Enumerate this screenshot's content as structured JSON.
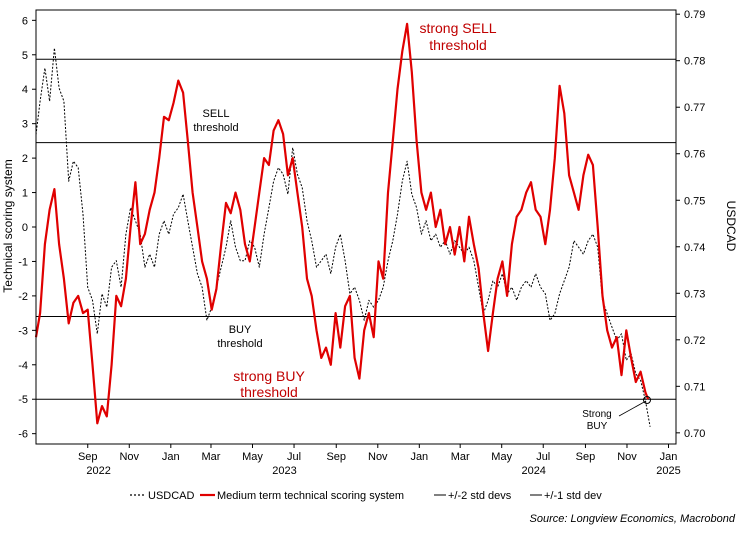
{
  "chart_data": {
    "type": "line",
    "y_left_label": "Technical scoring system",
    "y_right_label": "USDCAD",
    "y_left_range": [
      -6.3,
      6.3
    ],
    "y_right_range": [
      0.6976,
      0.7909
    ],
    "y_left_ticks": [
      "-6",
      "-5",
      "-4",
      "-3",
      "-2",
      "-1",
      "0",
      "1",
      "2",
      "3",
      "4",
      "5",
      "6"
    ],
    "y_right_ticks": [
      "0.70",
      "0.71",
      "0.72",
      "0.73",
      "0.74",
      "0.75",
      "0.76",
      "0.77",
      "0.78",
      "0.79"
    ],
    "x_month_ticks": [
      "Sep",
      "Nov",
      "Jan",
      "Mar",
      "May",
      "Jul",
      "Sep",
      "Nov",
      "Jan",
      "Mar",
      "May",
      "Jul",
      "Sep",
      "Nov",
      "Jan"
    ],
    "x_year_labels": [
      "2022",
      "2023",
      "2024",
      "2025"
    ],
    "thresholds": [
      {
        "name": "strong SELL",
        "value": 4.87
      },
      {
        "name": "SELL",
        "value": 2.45
      },
      {
        "name": "BUY",
        "value": -2.6
      },
      {
        "name": "strong BUY",
        "value": -5.0
      }
    ],
    "annotations": {
      "strong_sell": [
        "strong SELL",
        "threshold"
      ],
      "sell": [
        "SELL",
        "threshold"
      ],
      "buy": [
        "BUY",
        "threshold"
      ],
      "strong_buy": [
        "strong BUY",
        "threshold"
      ],
      "callout": [
        "Strong",
        "BUY"
      ]
    },
    "legend": [
      "USDCAD",
      "Medium term technical scoring system",
      "+/-2 std devs",
      "+/-1 std dev"
    ],
    "source": "Source: Longview Economics, Macrobond",
    "series": [
      {
        "name": "Medium term technical scoring system",
        "axis": "left",
        "color": "#e00000",
        "points": [
          [
            "2022-07-01",
            -3.2
          ],
          [
            "2022-07-07",
            -2.5
          ],
          [
            "2022-07-14",
            -0.5
          ],
          [
            "2022-07-21",
            0.5
          ],
          [
            "2022-07-28",
            1.1
          ],
          [
            "2022-08-04",
            -0.5
          ],
          [
            "2022-08-11",
            -1.5
          ],
          [
            "2022-08-18",
            -2.8
          ],
          [
            "2022-08-25",
            -2.2
          ],
          [
            "2022-09-01",
            -2.0
          ],
          [
            "2022-09-08",
            -2.5
          ],
          [
            "2022-09-15",
            -2.4
          ],
          [
            "2022-09-22",
            -4.0
          ],
          [
            "2022-09-29",
            -5.7
          ],
          [
            "2022-10-06",
            -5.2
          ],
          [
            "2022-10-13",
            -5.5
          ],
          [
            "2022-10-20",
            -4.0
          ],
          [
            "2022-10-27",
            -2.0
          ],
          [
            "2022-11-03",
            -2.3
          ],
          [
            "2022-11-10",
            -1.5
          ],
          [
            "2022-11-17",
            0.0
          ],
          [
            "2022-11-24",
            1.3
          ],
          [
            "2022-12-01",
            -0.5
          ],
          [
            "2022-12-08",
            -0.2
          ],
          [
            "2022-12-15",
            0.5
          ],
          [
            "2022-12-22",
            1.0
          ],
          [
            "2022-12-29",
            2.0
          ],
          [
            "2023-01-05",
            3.2
          ],
          [
            "2023-01-12",
            3.1
          ],
          [
            "2023-01-19",
            3.6
          ],
          [
            "2023-01-26",
            4.25
          ],
          [
            "2023-02-02",
            3.9
          ],
          [
            "2023-02-09",
            2.5
          ],
          [
            "2023-02-16",
            1.0
          ],
          [
            "2023-02-23",
            0.0
          ],
          [
            "2023-03-02",
            -1.0
          ],
          [
            "2023-03-09",
            -1.5
          ],
          [
            "2023-03-16",
            -2.4
          ],
          [
            "2023-03-23",
            -1.8
          ],
          [
            "2023-03-30",
            -0.5
          ],
          [
            "2023-04-06",
            0.7
          ],
          [
            "2023-04-13",
            0.4
          ],
          [
            "2023-04-20",
            1.0
          ],
          [
            "2023-04-27",
            0.5
          ],
          [
            "2023-05-04",
            -0.5
          ],
          [
            "2023-05-11",
            -1.0
          ],
          [
            "2023-05-18",
            0.0
          ],
          [
            "2023-05-25",
            1.0
          ],
          [
            "2023-06-01",
            2.0
          ],
          [
            "2023-06-08",
            1.8
          ],
          [
            "2023-06-15",
            2.8
          ],
          [
            "2023-06-22",
            3.1
          ],
          [
            "2023-06-29",
            2.7
          ],
          [
            "2023-07-06",
            1.5
          ],
          [
            "2023-07-13",
            2.0
          ],
          [
            "2023-07-20",
            1.0
          ],
          [
            "2023-07-27",
            0.0
          ],
          [
            "2023-08-03",
            -1.5
          ],
          [
            "2023-08-10",
            -2.0
          ],
          [
            "2023-08-17",
            -3.0
          ],
          [
            "2023-08-24",
            -3.8
          ],
          [
            "2023-08-31",
            -3.5
          ],
          [
            "2023-09-07",
            -4.0
          ],
          [
            "2023-09-14",
            -2.5
          ],
          [
            "2023-09-21",
            -3.5
          ],
          [
            "2023-09-28",
            -2.3
          ],
          [
            "2023-10-05",
            -2.0
          ],
          [
            "2023-10-12",
            -3.8
          ],
          [
            "2023-10-19",
            -4.4
          ],
          [
            "2023-10-26",
            -3.0
          ],
          [
            "2023-11-02",
            -2.5
          ],
          [
            "2023-11-09",
            -3.2
          ],
          [
            "2023-11-16",
            -1.0
          ],
          [
            "2023-11-23",
            -1.5
          ],
          [
            "2023-11-30",
            1.0
          ],
          [
            "2023-12-07",
            2.5
          ],
          [
            "2023-12-14",
            4.0
          ],
          [
            "2023-12-21",
            5.1
          ],
          [
            "2023-12-28",
            5.9
          ],
          [
            "2024-01-04",
            4.5
          ],
          [
            "2024-01-11",
            2.5
          ],
          [
            "2024-01-18",
            1.0
          ],
          [
            "2024-01-25",
            0.5
          ],
          [
            "2024-02-01",
            1.0
          ],
          [
            "2024-02-08",
            0.0
          ],
          [
            "2024-02-15",
            0.5
          ],
          [
            "2024-02-22",
            -0.5
          ],
          [
            "2024-02-29",
            0.0
          ],
          [
            "2024-03-07",
            -0.8
          ],
          [
            "2024-03-14",
            0.0
          ],
          [
            "2024-03-21",
            -1.0
          ],
          [
            "2024-03-28",
            0.3
          ],
          [
            "2024-04-04",
            -0.5
          ],
          [
            "2024-04-11",
            -1.2
          ],
          [
            "2024-04-18",
            -2.5
          ],
          [
            "2024-04-25",
            -3.6
          ],
          [
            "2024-05-02",
            -2.5
          ],
          [
            "2024-05-09",
            -1.5
          ],
          [
            "2024-05-16",
            -1.0
          ],
          [
            "2024-05-23",
            -2.0
          ],
          [
            "2024-05-30",
            -0.5
          ],
          [
            "2024-06-06",
            0.3
          ],
          [
            "2024-06-13",
            0.5
          ],
          [
            "2024-06-20",
            1.0
          ],
          [
            "2024-06-27",
            1.3
          ],
          [
            "2024-07-04",
            0.5
          ],
          [
            "2024-07-11",
            0.3
          ],
          [
            "2024-07-18",
            -0.5
          ],
          [
            "2024-07-25",
            0.5
          ],
          [
            "2024-08-01",
            2.0
          ],
          [
            "2024-08-08",
            4.1
          ],
          [
            "2024-08-15",
            3.3
          ],
          [
            "2024-08-22",
            1.5
          ],
          [
            "2024-08-29",
            1.0
          ],
          [
            "2024-09-05",
            0.5
          ],
          [
            "2024-09-12",
            1.5
          ],
          [
            "2024-09-19",
            2.1
          ],
          [
            "2024-09-26",
            1.8
          ],
          [
            "2024-10-03",
            0.0
          ],
          [
            "2024-10-10",
            -2.0
          ],
          [
            "2024-10-17",
            -3.0
          ],
          [
            "2024-10-24",
            -3.5
          ],
          [
            "2024-10-31",
            -3.2
          ],
          [
            "2024-11-07",
            -4.3
          ],
          [
            "2024-11-14",
            -3.0
          ],
          [
            "2024-11-21",
            -3.8
          ],
          [
            "2024-11-28",
            -4.5
          ],
          [
            "2024-12-05",
            -4.2
          ],
          [
            "2024-12-12",
            -4.8
          ],
          [
            "2024-12-16",
            -5.0
          ]
        ]
      },
      {
        "name": "USDCAD",
        "axis": "right",
        "color": "#000000",
        "points": [
          [
            "2022-07-01",
            0.7641
          ],
          [
            "2022-07-07",
            0.7713
          ],
          [
            "2022-07-14",
            0.7784
          ],
          [
            "2022-07-21",
            0.7713
          ],
          [
            "2022-07-28",
            0.7827
          ],
          [
            "2022-08-04",
            0.7741
          ],
          [
            "2022-08-11",
            0.7713
          ],
          [
            "2022-08-18",
            0.7541
          ],
          [
            "2022-08-25",
            0.7584
          ],
          [
            "2022-09-01",
            0.757
          ],
          [
            "2022-09-08",
            0.747
          ],
          [
            "2022-09-15",
            0.7313
          ],
          [
            "2022-09-22",
            0.7285
          ],
          [
            "2022-09-29",
            0.7213
          ],
          [
            "2022-10-06",
            0.7299
          ],
          [
            "2022-10-13",
            0.727
          ],
          [
            "2022-10-20",
            0.7356
          ],
          [
            "2022-10-27",
            0.737
          ],
          [
            "2022-11-03",
            0.7313
          ],
          [
            "2022-11-10",
            0.7427
          ],
          [
            "2022-11-17",
            0.7484
          ],
          [
            "2022-11-24",
            0.7456
          ],
          [
            "2022-12-01",
            0.7427
          ],
          [
            "2022-12-08",
            0.7356
          ],
          [
            "2022-12-15",
            0.7384
          ],
          [
            "2022-12-22",
            0.7356
          ],
          [
            "2022-12-29",
            0.7427
          ],
          [
            "2023-01-05",
            0.7456
          ],
          [
            "2023-01-12",
            0.7427
          ],
          [
            "2023-01-19",
            0.747
          ],
          [
            "2023-01-26",
            0.7484
          ],
          [
            "2023-02-02",
            0.7513
          ],
          [
            "2023-02-09",
            0.7456
          ],
          [
            "2023-02-16",
            0.7399
          ],
          [
            "2023-02-23",
            0.7342
          ],
          [
            "2023-03-02",
            0.7313
          ],
          [
            "2023-03-09",
            0.7242
          ],
          [
            "2023-03-16",
            0.727
          ],
          [
            "2023-03-23",
            0.7313
          ],
          [
            "2023-03-30",
            0.7356
          ],
          [
            "2023-04-06",
            0.7399
          ],
          [
            "2023-04-13",
            0.7456
          ],
          [
            "2023-04-20",
            0.7399
          ],
          [
            "2023-04-27",
            0.737
          ],
          [
            "2023-05-04",
            0.737
          ],
          [
            "2023-05-11",
            0.7413
          ],
          [
            "2023-05-18",
            0.7399
          ],
          [
            "2023-05-25",
            0.7356
          ],
          [
            "2023-06-01",
            0.7427
          ],
          [
            "2023-06-08",
            0.7484
          ],
          [
            "2023-06-15",
            0.7541
          ],
          [
            "2023-06-22",
            0.757
          ],
          [
            "2023-06-29",
            0.7556
          ],
          [
            "2023-07-06",
            0.7513
          ],
          [
            "2023-07-13",
            0.7613
          ],
          [
            "2023-07-20",
            0.7556
          ],
          [
            "2023-07-27",
            0.7527
          ],
          [
            "2023-08-03",
            0.7456
          ],
          [
            "2023-08-10",
            0.7413
          ],
          [
            "2023-08-17",
            0.7356
          ],
          [
            "2023-08-24",
            0.737
          ],
          [
            "2023-08-31",
            0.7384
          ],
          [
            "2023-09-07",
            0.7342
          ],
          [
            "2023-09-14",
            0.7399
          ],
          [
            "2023-09-21",
            0.7427
          ],
          [
            "2023-09-28",
            0.737
          ],
          [
            "2023-10-05",
            0.7299
          ],
          [
            "2023-10-12",
            0.7313
          ],
          [
            "2023-10-19",
            0.7285
          ],
          [
            "2023-10-26",
            0.7242
          ],
          [
            "2023-11-02",
            0.7285
          ],
          [
            "2023-11-09",
            0.727
          ],
          [
            "2023-11-16",
            0.7285
          ],
          [
            "2023-11-23",
            0.7313
          ],
          [
            "2023-11-30",
            0.737
          ],
          [
            "2023-12-07",
            0.7413
          ],
          [
            "2023-12-14",
            0.747
          ],
          [
            "2023-12-21",
            0.7541
          ],
          [
            "2023-12-28",
            0.7584
          ],
          [
            "2024-01-04",
            0.7513
          ],
          [
            "2024-01-11",
            0.7484
          ],
          [
            "2024-01-18",
            0.7427
          ],
          [
            "2024-01-25",
            0.7456
          ],
          [
            "2024-02-01",
            0.7413
          ],
          [
            "2024-02-08",
            0.7427
          ],
          [
            "2024-02-15",
            0.7399
          ],
          [
            "2024-02-22",
            0.7413
          ],
          [
            "2024-02-29",
            0.7384
          ],
          [
            "2024-03-07",
            0.7413
          ],
          [
            "2024-03-14",
            0.7399
          ],
          [
            "2024-03-21",
            0.7384
          ],
          [
            "2024-03-28",
            0.7399
          ],
          [
            "2024-04-04",
            0.737
          ],
          [
            "2024-04-11",
            0.7313
          ],
          [
            "2024-04-18",
            0.7256
          ],
          [
            "2024-04-25",
            0.7285
          ],
          [
            "2024-05-02",
            0.7327
          ],
          [
            "2024-05-09",
            0.7313
          ],
          [
            "2024-05-16",
            0.7342
          ],
          [
            "2024-05-23",
            0.7299
          ],
          [
            "2024-05-30",
            0.7313
          ],
          [
            "2024-06-06",
            0.7285
          ],
          [
            "2024-06-13",
            0.7313
          ],
          [
            "2024-06-20",
            0.7327
          ],
          [
            "2024-06-27",
            0.7313
          ],
          [
            "2024-07-04",
            0.7342
          ],
          [
            "2024-07-11",
            0.7313
          ],
          [
            "2024-07-18",
            0.7299
          ],
          [
            "2024-07-25",
            0.7242
          ],
          [
            "2024-08-01",
            0.7256
          ],
          [
            "2024-08-08",
            0.7299
          ],
          [
            "2024-08-15",
            0.7327
          ],
          [
            "2024-08-22",
            0.7356
          ],
          [
            "2024-08-29",
            0.7413
          ],
          [
            "2024-09-05",
            0.7399
          ],
          [
            "2024-09-12",
            0.7384
          ],
          [
            "2024-09-19",
            0.7413
          ],
          [
            "2024-09-26",
            0.7427
          ],
          [
            "2024-10-03",
            0.7399
          ],
          [
            "2024-10-10",
            0.7285
          ],
          [
            "2024-10-17",
            0.7256
          ],
          [
            "2024-10-24",
            0.7227
          ],
          [
            "2024-10-31",
            0.7199
          ],
          [
            "2024-11-07",
            0.7213
          ],
          [
            "2024-11-14",
            0.7156
          ],
          [
            "2024-11-21",
            0.717
          ],
          [
            "2024-11-28",
            0.7127
          ],
          [
            "2024-12-05",
            0.7113
          ],
          [
            "2024-12-12",
            0.707
          ],
          [
            "2024-12-19",
            0.7013
          ]
        ]
      }
    ]
  }
}
